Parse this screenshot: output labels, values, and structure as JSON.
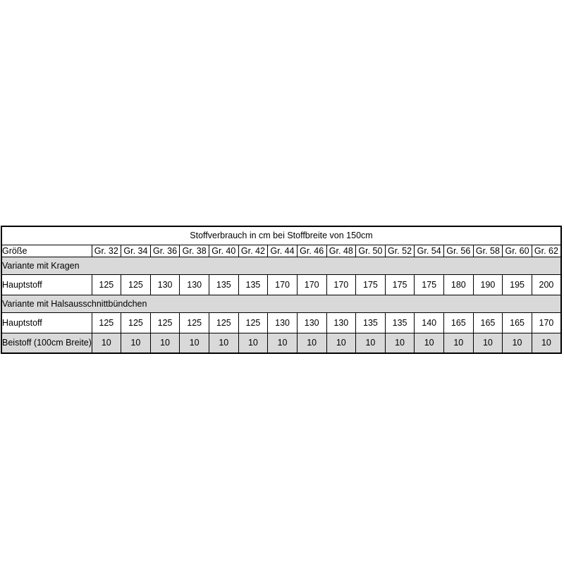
{
  "table": {
    "title": "Stoffverbrauch in cm bei Stoffbreite von 150cm",
    "header": {
      "size_label": "Größe",
      "sizes": [
        "Gr. 32",
        "Gr. 34",
        "Gr. 36",
        "Gr. 38",
        "Gr. 40",
        "Gr. 42",
        "Gr. 44",
        "Gr. 46",
        "Gr. 48",
        "Gr. 50",
        "Gr. 52",
        "Gr. 54",
        "Gr. 56",
        "Gr. 58",
        "Gr. 60",
        "Gr. 62"
      ],
      "column_count": 16
    },
    "sections": [
      {
        "heading": "Variante mit Kragen",
        "rows": [
          {
            "label": "Hauptstoff",
            "shaded": false,
            "values": [
              "125",
              "125",
              "130",
              "130",
              "135",
              "135",
              "170",
              "170",
              "170",
              "175",
              "175",
              "175",
              "180",
              "190",
              "195",
              "200"
            ]
          }
        ]
      },
      {
        "heading": "Variante mit Halsausschnittbündchen",
        "rows": [
          {
            "label": "Hauptstoff",
            "shaded": false,
            "values": [
              "125",
              "125",
              "125",
              "125",
              "125",
              "125",
              "130",
              "130",
              "130",
              "135",
              "135",
              "140",
              "165",
              "165",
              "165",
              "170"
            ]
          },
          {
            "label": "Beistoff (100cm Breite)",
            "shaded": true,
            "values": [
              "10",
              "10",
              "10",
              "10",
              "10",
              "10",
              "10",
              "10",
              "10",
              "10",
              "10",
              "10",
              "10",
              "10",
              "10",
              "10"
            ]
          }
        ]
      }
    ],
    "colors": {
      "shaded_bg": "#d9d9d9",
      "border": "#000000",
      "text": "#000000",
      "background": "#ffffff"
    }
  }
}
